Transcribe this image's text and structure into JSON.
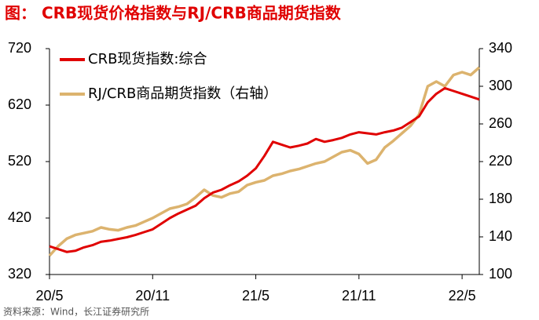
{
  "chart_data": {
    "type": "line",
    "title": "图：  CRB现货价格指数与RJ/CRB商品期货指数",
    "source": "资料来源：Wind，长江证券研究所",
    "categories": [
      "20/5",
      null,
      null,
      null,
      null,
      null,
      null,
      null,
      null,
      null,
      null,
      null,
      "20/11",
      null,
      null,
      null,
      null,
      null,
      null,
      null,
      null,
      null,
      null,
      null,
      "21/5",
      null,
      null,
      null,
      null,
      null,
      null,
      null,
      null,
      null,
      null,
      null,
      "21/11",
      null,
      null,
      null,
      null,
      null,
      null,
      null,
      null,
      null,
      null,
      null,
      "22/5",
      null,
      null
    ],
    "ylim": [
      320,
      720
    ],
    "yticks": [
      320,
      420,
      520,
      620,
      720
    ],
    "y2lim": [
      100,
      340
    ],
    "y2ticks": [
      100,
      140,
      180,
      220,
      260,
      300,
      340
    ],
    "grid": false,
    "legend": "upper left",
    "series": [
      {
        "name": "CRB现货指数:综合",
        "color": "#e00000",
        "axis": "y",
        "values": [
          370,
          365,
          360,
          362,
          368,
          372,
          378,
          380,
          383,
          386,
          390,
          395,
          400,
          410,
          420,
          428,
          435,
          442,
          455,
          465,
          470,
          478,
          485,
          495,
          508,
          530,
          555,
          550,
          545,
          548,
          552,
          560,
          555,
          558,
          562,
          568,
          572,
          570,
          568,
          572,
          575,
          580,
          590,
          600,
          625,
          640,
          650,
          645,
          640,
          635,
          630
        ]
      },
      {
        "name": "RJ/CRB商品期货指数（右轴）",
        "color": "#dcb36e",
        "axis": "y2",
        "values": [
          120,
          130,
          138,
          142,
          144,
          146,
          150,
          148,
          147,
          150,
          152,
          156,
          160,
          165,
          170,
          172,
          175,
          182,
          190,
          184,
          182,
          186,
          188,
          195,
          198,
          200,
          205,
          207,
          210,
          212,
          215,
          218,
          220,
          225,
          230,
          232,
          228,
          218,
          222,
          235,
          242,
          250,
          258,
          270,
          300,
          305,
          300,
          312,
          315,
          312,
          320
        ]
      }
    ]
  }
}
